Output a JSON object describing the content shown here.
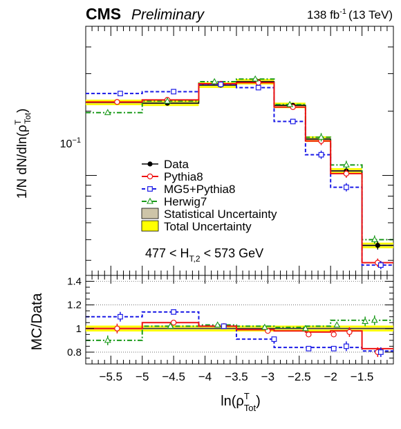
{
  "header": {
    "cms_label": "CMS",
    "prelim_label": "Preliminary",
    "lumi_value": "138 fb",
    "lumi_exp": "-1",
    "lumi_energy": "(13 TeV)"
  },
  "colors": {
    "data": "#000000",
    "pythia": "#ee1111",
    "mg5": "#1a1ae6",
    "herwig": "#1a9a1a",
    "stat_band": "#cdc4a8",
    "total_band": "#ffff00"
  },
  "chart_data": [
    {
      "type": "line",
      "panel": "main",
      "ylabel": "1/N dN/dln(ρ",
      "ylabel_sup": "T",
      "ylabel_sub": "Tot",
      "yscale": "log",
      "ylim": [
        0.034,
        0.5
      ],
      "xlim": [
        -5.9,
        -1.0
      ],
      "ytick_labels": [
        {
          "value": 0.1,
          "base": "10",
          "exp": "−1"
        }
      ],
      "bin_edges": [
        -5.9,
        -5.0,
        -4.1,
        -3.5,
        -2.9,
        -2.4,
        -2.0,
        -1.5,
        -1.0
      ],
      "selection": {
        "text": "477 < H",
        "sub": "T,2",
        "rest": " < 573 GeV"
      },
      "legend_position": "center",
      "series": [
        {
          "name": "Data",
          "key": "data",
          "x": [
            -5.4,
            -4.6,
            -3.75,
            -3.15,
            -2.6,
            -2.15,
            -1.75,
            -1.25
          ],
          "values": [
            0.22,
            0.218,
            0.265,
            0.275,
            0.213,
            0.148,
            0.105,
            0.047
          ]
        },
        {
          "name": "Pythia8",
          "key": "pythia",
          "x": [
            -5.4,
            -4.6,
            -3.75,
            -3.15,
            -2.6,
            -2.15,
            -1.75,
            -1.25
          ],
          "values": [
            0.221,
            0.226,
            0.269,
            0.272,
            0.209,
            0.145,
            0.102,
            0.039
          ]
        },
        {
          "name": "MG5+Pythia8",
          "key": "mg5",
          "x": [
            -5.35,
            -4.5,
            -3.75,
            -3.15,
            -2.6,
            -2.15,
            -1.75,
            -1.2
          ],
          "values": [
            0.242,
            0.247,
            0.267,
            0.258,
            0.179,
            0.125,
            0.088,
            0.038
          ]
        },
        {
          "name": "Herwig7",
          "key": "herwig",
          "x": [
            -5.55,
            -4.6,
            -3.85,
            -3.2,
            -2.65,
            -2.15,
            -1.75,
            -1.3
          ],
          "values": [
            0.197,
            0.223,
            0.275,
            0.283,
            0.215,
            0.151,
            0.112,
            0.05
          ]
        }
      ],
      "bands": [
        {
          "name": "Statistical Uncertainty",
          "key": "stat",
          "rel": 0.01
        },
        {
          "name": "Total Uncertainty",
          "key": "total",
          "rel": 0.03
        }
      ]
    },
    {
      "type": "line",
      "panel": "ratio",
      "ylabel": "MC/Data",
      "ylim": [
        0.7,
        1.45
      ],
      "yticks": [
        0.8,
        1,
        1.2,
        1.4
      ],
      "ytick_labels": [
        "0.8",
        "1",
        "1.2",
        "1.4"
      ],
      "xlim": [
        -5.9,
        -1.0
      ],
      "xticks": [
        -5.5,
        -5,
        -4.5,
        -4,
        -3.5,
        -3,
        -2.5,
        -2,
        -1.5
      ],
      "xtick_labels": [
        "−5.5",
        "−5",
        "−4.5",
        "−4",
        "−3.5",
        "−3",
        "−2.5",
        "−2",
        "−1.5"
      ],
      "xlabel": "ln(ρ",
      "xlabel_sup": "T",
      "xlabel_sub": "Tot",
      "xlabel_close": ")",
      "series": [
        {
          "name": "Pythia8",
          "key": "pythia",
          "values": [
            1.0,
            1.05,
            1.02,
            0.99,
            0.98,
            0.97,
            0.98,
            0.83
          ]
        },
        {
          "name": "MG5+Pythia8",
          "key": "mg5",
          "values": [
            1.1,
            1.14,
            1.02,
            0.91,
            0.84,
            0.84,
            0.84,
            0.81
          ]
        },
        {
          "name": "Herwig7",
          "key": "herwig",
          "values": [
            0.9,
            1.02,
            1.03,
            1.02,
            1.01,
            1.02,
            1.07,
            1.07
          ]
        }
      ],
      "marker_x": {
        "pythia": [
          -5.4,
          -4.5,
          -3.7,
          -3.0,
          -2.35,
          -1.95,
          -1.7,
          -1.25
        ],
        "mg5": [
          -5.35,
          -4.5,
          -3.7,
          -2.9,
          -2.35,
          -1.95,
          -1.75,
          -1.2
        ],
        "herwig": [
          -5.55,
          -4.55,
          -3.8,
          -3.05,
          -2.4,
          -1.9,
          -1.45,
          -1.3
        ]
      },
      "marker_y": {
        "pythia": [
          1.0,
          1.05,
          1.02,
          0.98,
          0.95,
          0.95,
          0.97,
          0.8
        ],
        "mg5": [
          1.1,
          1.14,
          1.02,
          0.91,
          0.83,
          0.83,
          0.85,
          0.8
        ],
        "herwig": [
          0.9,
          1.02,
          1.03,
          1.01,
          1.0,
          1.03,
          1.06,
          1.07
        ]
      },
      "bands": [
        {
          "key": "total",
          "rel": 0.025
        },
        {
          "key": "stat",
          "rel": 0.008
        }
      ]
    }
  ]
}
